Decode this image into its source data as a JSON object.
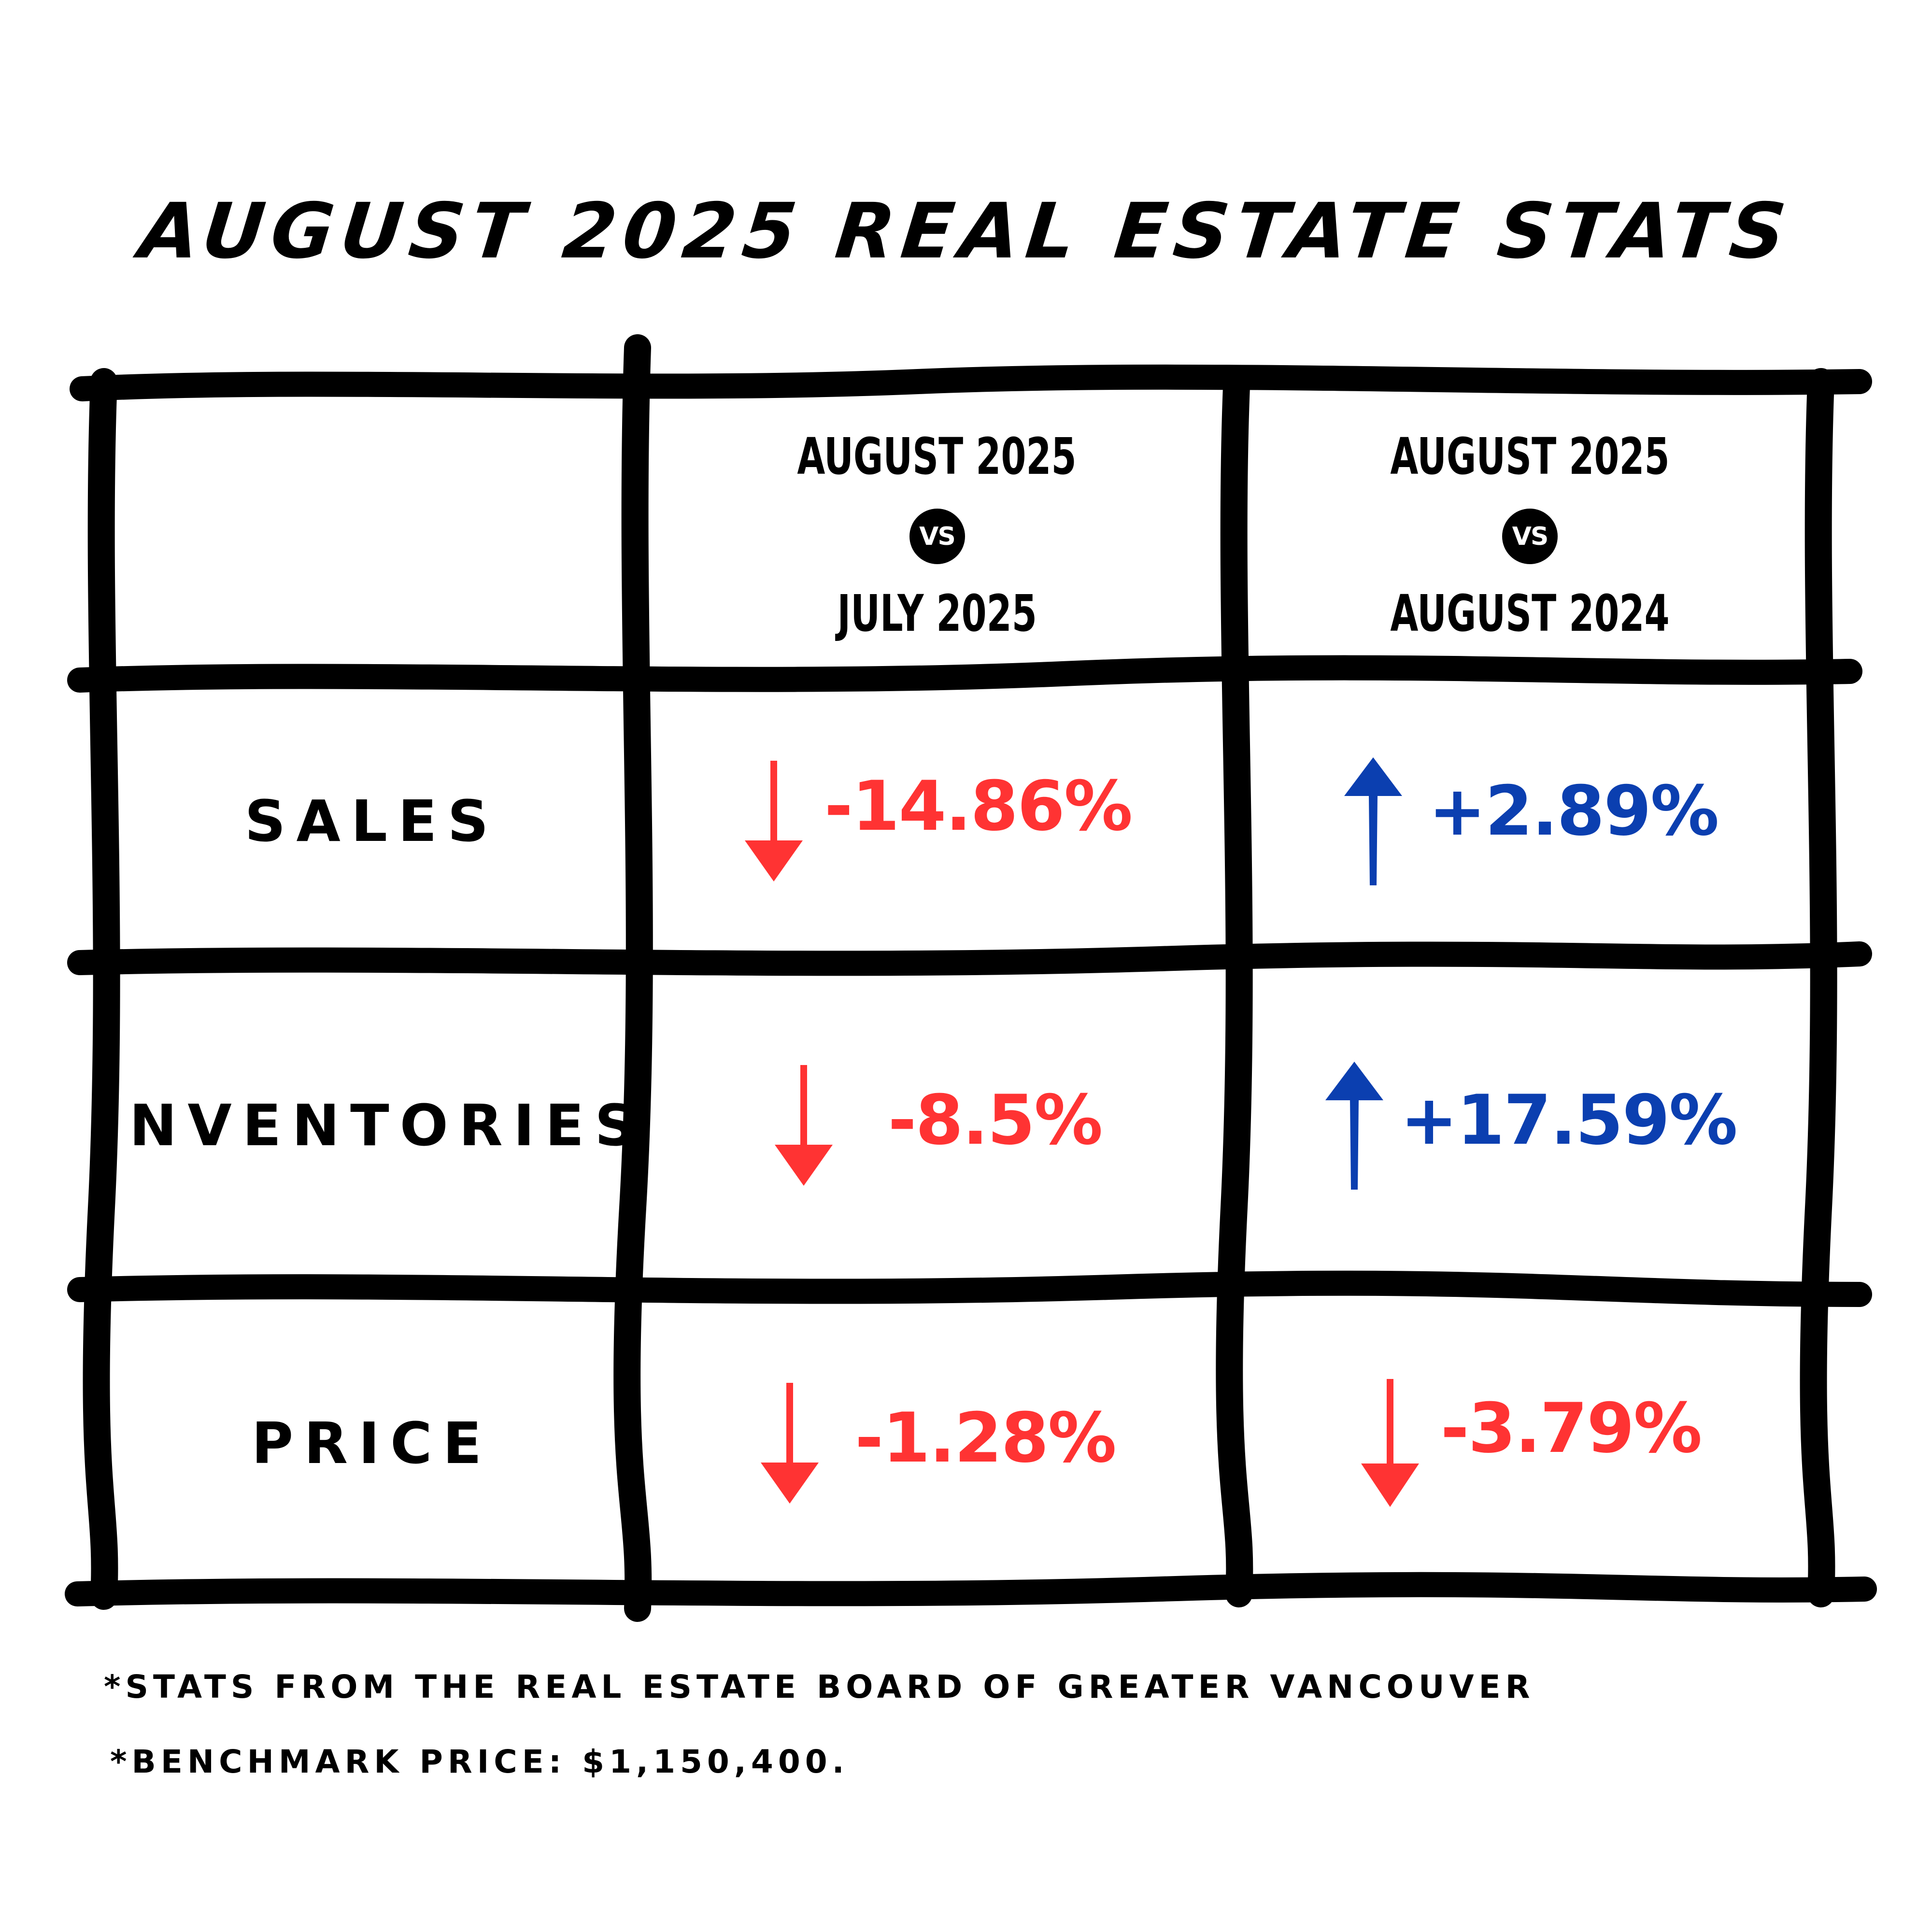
{
  "title": "AUGUST 2025 REAL ESTATE STATS",
  "colors": {
    "negative": "#ff3333",
    "positive": "#0b3fb0",
    "ink": "#000000"
  },
  "headers": [
    {
      "top": "AUGUST 2025",
      "vs": "VS",
      "bottom": "JULY 2025"
    },
    {
      "top": "AUGUST 2025",
      "vs": "VS",
      "bottom": "AUGUST 2024"
    }
  ],
  "rows": [
    {
      "label": "SALES",
      "cells": [
        {
          "value": "-14.86%",
          "direction": "down"
        },
        {
          "value": "+2.89%",
          "direction": "up"
        }
      ]
    },
    {
      "label": "INVENTORIES",
      "cells": [
        {
          "value": "-8.5%",
          "direction": "down"
        },
        {
          "value": "+17.59%",
          "direction": "up"
        }
      ]
    },
    {
      "label": "PRICE",
      "cells": [
        {
          "value": "-1.28%",
          "direction": "down"
        },
        {
          "value": "-3.79%",
          "direction": "down"
        }
      ]
    }
  ],
  "notes": [
    "*STATS FROM THE REAL ESTATE BOARD OF GREATER VANCOUVER",
    "*BENCHMARK PRICE: $1,150,400."
  ]
}
